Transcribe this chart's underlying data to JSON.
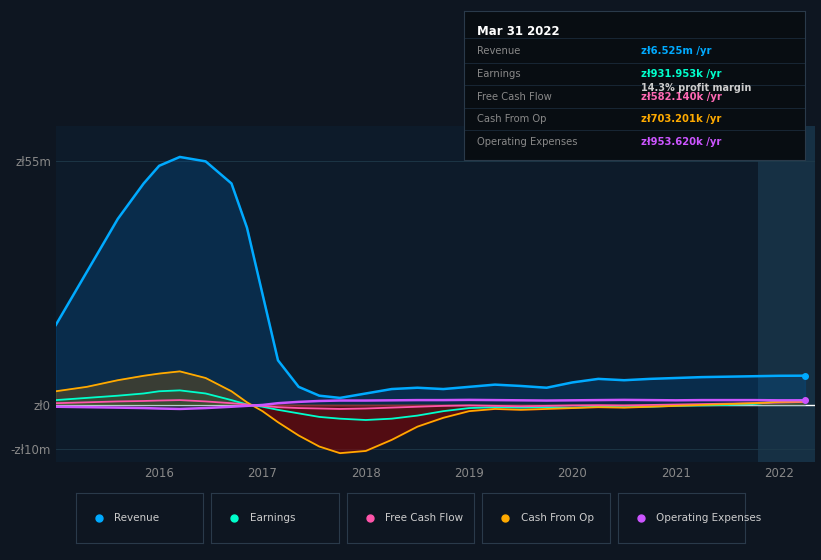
{
  "bg_color": "#0e1621",
  "plot_bg_color": "#0d1b2a",
  "grid_color": "#1e3a4a",
  "title_text": "Mar 31 2022",
  "info_box": {
    "Revenue": {
      "label": "Revenue",
      "value": "zł6.525m /yr",
      "color": "#00aaff"
    },
    "Earnings": {
      "label": "Earnings",
      "value": "zł931.953k /yr",
      "color": "#00ffcc"
    },
    "profit_margin": "14.3% profit margin",
    "Free Cash Flow": {
      "label": "Free Cash Flow",
      "value": "zł582.140k /yr",
      "color": "#ff69b4"
    },
    "Cash From Op": {
      "label": "Cash From Op",
      "value": "zł703.201k /yr",
      "color": "#ffaa00"
    },
    "Operating Expenses": {
      "label": "Operating Expenses",
      "value": "zł953.620k /yr",
      "color": "#cc55ff"
    }
  },
  "yticks": [
    "zł55m",
    "zł0",
    "-zł10m"
  ],
  "ytick_values": [
    55000000,
    0,
    -10000000
  ],
  "ylim": [
    -13000000,
    63000000
  ],
  "x_years": [
    2015.0,
    2015.3,
    2015.6,
    2015.85,
    2016.0,
    2016.2,
    2016.45,
    2016.7,
    2016.85,
    2017.0,
    2017.15,
    2017.35,
    2017.55,
    2017.75,
    2018.0,
    2018.25,
    2018.5,
    2018.75,
    2019.0,
    2019.25,
    2019.5,
    2019.75,
    2020.0,
    2020.25,
    2020.5,
    2020.75,
    2021.0,
    2021.25,
    2021.5,
    2021.75,
    2022.0,
    2022.25
  ],
  "revenue": [
    18000000,
    30000000,
    42000000,
    50000000,
    54000000,
    56000000,
    55000000,
    50000000,
    40000000,
    25000000,
    10000000,
    4000000,
    2000000,
    1500000,
    2500000,
    3500000,
    3800000,
    3500000,
    4000000,
    4500000,
    4200000,
    3800000,
    5000000,
    5800000,
    5500000,
    5800000,
    6000000,
    6200000,
    6300000,
    6400000,
    6500000,
    6525000
  ],
  "earnings": [
    1000000,
    1500000,
    2000000,
    2500000,
    3000000,
    3200000,
    2500000,
    1000000,
    0,
    -500000,
    -1200000,
    -2000000,
    -2800000,
    -3200000,
    -3500000,
    -3200000,
    -2500000,
    -1500000,
    -800000,
    -600000,
    -700000,
    -600000,
    -700000,
    -500000,
    -600000,
    -500000,
    -300000,
    -200000,
    -100000,
    100000,
    700000,
    931953
  ],
  "free_cash_flow": [
    300000,
    500000,
    700000,
    800000,
    900000,
    1000000,
    700000,
    300000,
    0,
    -300000,
    -600000,
    -800000,
    -900000,
    -1000000,
    -900000,
    -700000,
    -500000,
    -300000,
    -200000,
    -300000,
    -400000,
    -300000,
    -200000,
    -150000,
    -200000,
    -100000,
    0,
    100000,
    200000,
    300000,
    450000,
    582140
  ],
  "cash_from_op": [
    3000000,
    4000000,
    5500000,
    6500000,
    7000000,
    7500000,
    6000000,
    3000000,
    500000,
    -1500000,
    -4000000,
    -7000000,
    -9500000,
    -11000000,
    -10500000,
    -8000000,
    -5000000,
    -3000000,
    -1500000,
    -1000000,
    -1200000,
    -1000000,
    -800000,
    -600000,
    -700000,
    -500000,
    -300000,
    -100000,
    100000,
    300000,
    600000,
    703201
  ],
  "op_expenses": [
    -500000,
    -600000,
    -700000,
    -800000,
    -900000,
    -1000000,
    -800000,
    -500000,
    -300000,
    -100000,
    300000,
    600000,
    800000,
    900000,
    900000,
    950000,
    1000000,
    1000000,
    1050000,
    1000000,
    950000,
    900000,
    950000,
    1000000,
    1050000,
    1000000,
    950000,
    1000000,
    1000000,
    1000000,
    950000,
    953620
  ],
  "legend_items": [
    {
      "label": "Revenue",
      "color": "#00aaff"
    },
    {
      "label": "Earnings",
      "color": "#00ffcc"
    },
    {
      "label": "Free Cash Flow",
      "color": "#ff55aa"
    },
    {
      "label": "Cash From Op",
      "color": "#ffaa00"
    },
    {
      "label": "Operating Expenses",
      "color": "#cc55ff"
    }
  ],
  "highlight_start": 2021.8,
  "highlight_end": 2022.35,
  "xlim": [
    2015.0,
    2022.35
  ]
}
